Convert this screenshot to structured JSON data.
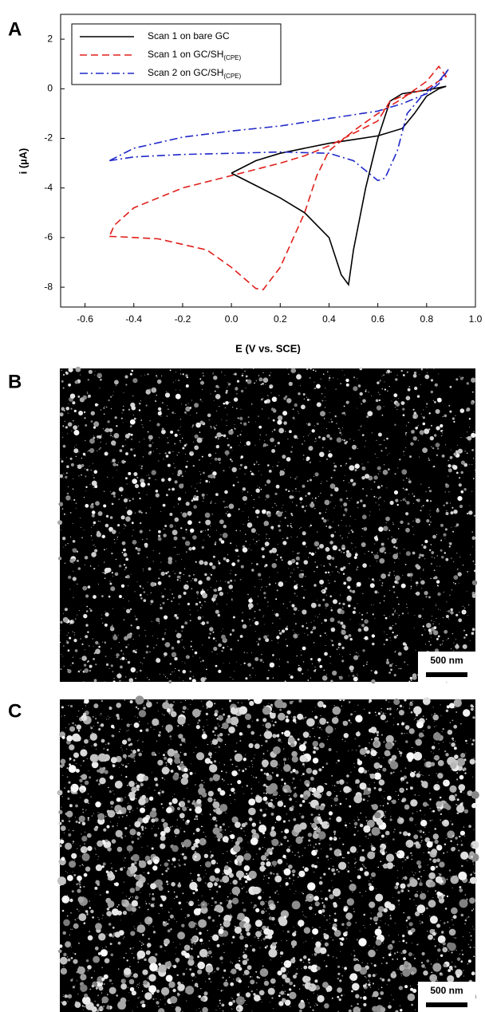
{
  "panel_labels": [
    "A",
    "B",
    "C"
  ],
  "scale_bars": [
    "500 nm",
    "500 nm"
  ],
  "chart_data": {
    "type": "line",
    "xlabel": "E (V vs. SCE)",
    "ylabel": "i (µA)",
    "xlim": [
      -0.7,
      1.0
    ],
    "ylim": [
      -8.8,
      3
    ],
    "xticks": [
      -0.6,
      -0.4,
      -0.2,
      {
        "value": 0,
        "label": "0.0"
      },
      0.2,
      0.4,
      0.6,
      0.8,
      {
        "value": 1,
        "label": "1.0"
      }
    ],
    "yticks": [
      -8,
      -6,
      -4,
      -2,
      0,
      2
    ],
    "legend": "upper-left",
    "series": [
      {
        "name": "Scan 1 on bare GC",
        "color": "#000000",
        "dash": "solid",
        "x": [
          0.0,
          0.1,
          0.2,
          0.3,
          0.4,
          0.5,
          0.6,
          0.7,
          0.75,
          0.8,
          0.85,
          0.88,
          0.8,
          0.7,
          0.65,
          0.6,
          0.55,
          0.5,
          0.48,
          0.45,
          0.4,
          0.3,
          0.2,
          0.1,
          0.0
        ],
        "values": [
          -3.4,
          -2.9,
          -2.6,
          -2.4,
          -2.2,
          -2.05,
          -1.9,
          -1.6,
          -1.0,
          -0.3,
          0.0,
          0.1,
          -0.05,
          -0.2,
          -0.5,
          -2.0,
          -4.0,
          -6.5,
          -7.9,
          -7.5,
          -6.0,
          -5.0,
          -4.4,
          -3.9,
          -3.4
        ]
      },
      {
        "name": "Scan 1 on GC/SH",
        "subscript": "(CPE)",
        "color": "#e0201b",
        "dash": "dashed",
        "x": [
          -0.5,
          -0.45,
          -0.3,
          -0.1,
          0.0,
          0.1,
          0.13,
          0.2,
          0.3,
          0.35,
          0.4,
          0.5,
          0.6,
          0.7,
          0.8,
          0.85,
          0.88,
          0.8,
          0.7,
          0.65,
          0.6,
          0.5,
          0.4,
          0.3,
          0.2,
          0.0,
          -0.2,
          -0.4,
          -0.48,
          -0.5
        ],
        "values": [
          -5.95,
          -5.97,
          -6.05,
          -6.5,
          -7.2,
          -8.05,
          -8.1,
          -7.2,
          -5.0,
          -3.5,
          -2.5,
          -1.7,
          -1.0,
          -0.4,
          0.3,
          0.9,
          0.5,
          0.0,
          -0.3,
          -0.5,
          -1.3,
          -1.8,
          -2.3,
          -2.7,
          -3.0,
          -3.5,
          -4.0,
          -4.8,
          -5.5,
          -5.95
        ]
      },
      {
        "name": "Scan 2 on GC/SH",
        "subscript": "(CPE)",
        "color": "#1f28c8",
        "dash": "dashdot",
        "x": [
          -0.5,
          -0.4,
          -0.2,
          0.0,
          0.2,
          0.4,
          0.5,
          0.55,
          0.6,
          0.63,
          0.68,
          0.72,
          0.78,
          0.85,
          0.89,
          0.85,
          0.8,
          0.7,
          0.6,
          0.4,
          0.2,
          0.0,
          -0.2,
          -0.4,
          -0.5
        ],
        "values": [
          -2.9,
          -2.75,
          -2.65,
          -2.6,
          -2.55,
          -2.6,
          -2.9,
          -3.3,
          -3.7,
          -3.6,
          -2.5,
          -1.0,
          -0.3,
          0.3,
          0.8,
          0.2,
          -0.2,
          -0.6,
          -0.9,
          -1.2,
          -1.5,
          -1.7,
          -1.95,
          -2.4,
          -2.9
        ]
      }
    ]
  }
}
